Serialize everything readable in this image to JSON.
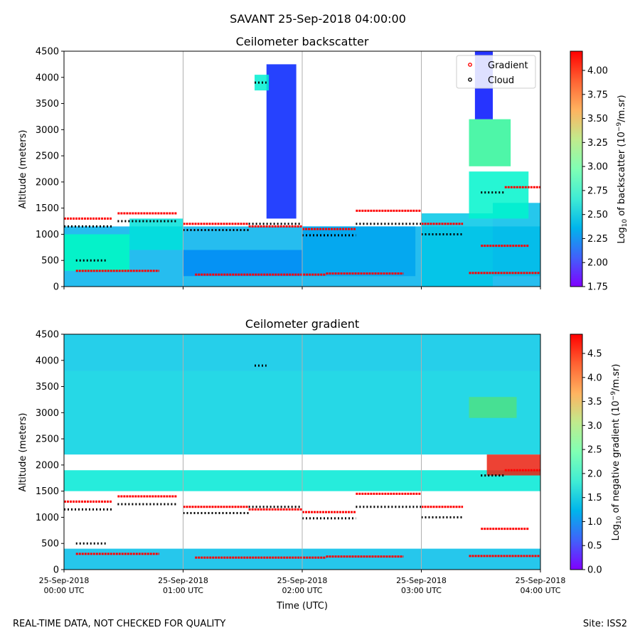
{
  "figure": {
    "suptitle": "SAVANT 25-Sep-2018 04:00:00",
    "footer_left": "REAL-TIME DATA, NOT CHECKED FOR QUALITY",
    "footer_right": "Site: ISS2"
  },
  "chart_data": [
    {
      "type": "heatmap",
      "title": "Ceilometer backscatter",
      "xlabel": "",
      "ylabel": "Altitude (meters)",
      "ylim": [
        0,
        4500
      ],
      "yticks": [
        0,
        500,
        1000,
        1500,
        2000,
        2500,
        3000,
        3500,
        4000,
        4500
      ],
      "xlim_hours": [
        0,
        4
      ],
      "x_grid_hours": [
        1,
        2,
        3
      ],
      "grid": "vertical",
      "legend": {
        "position": "top-right",
        "entries": [
          "Gradient",
          "Cloud"
        ]
      },
      "colorbar": {
        "label_main": "Log",
        "label_sub": "10",
        "label_rest": " of backscatter (10",
        "label_exp": "−9",
        "label_end": "/m.sr)",
        "range": [
          1.75,
          4.2
        ],
        "ticks": [
          "1.75",
          "2.00",
          "2.25",
          "2.50",
          "2.75",
          "3.00",
          "3.25",
          "3.50",
          "3.75",
          "4.00"
        ],
        "tick_values": [
          1.75,
          2.0,
          2.25,
          2.5,
          2.75,
          3.0,
          3.25,
          3.5,
          3.75,
          4.0
        ]
      }
    },
    {
      "type": "heatmap",
      "title": "Ceilometer gradient",
      "xlabel": "Time (UTC)",
      "ylabel": "Altitude (meters)",
      "ylim": [
        0,
        4500
      ],
      "yticks": [
        0,
        500,
        1000,
        1500,
        2000,
        2500,
        3000,
        3500,
        4000,
        4500
      ],
      "xlim_hours": [
        0,
        4
      ],
      "x_grid_hours": [
        1,
        2,
        3
      ],
      "grid": "vertical",
      "xticks": [
        {
          "hour": 0,
          "line1": "25-Sep-2018",
          "line2": "00:00 UTC"
        },
        {
          "hour": 1,
          "line1": "25-Sep-2018",
          "line2": "01:00 UTC"
        },
        {
          "hour": 2,
          "line1": "25-Sep-2018",
          "line2": "02:00 UTC"
        },
        {
          "hour": 3,
          "line1": "25-Sep-2018",
          "line2": "03:00 UTC"
        },
        {
          "hour": 4,
          "line1": "25-Sep-2018",
          "line2": "04:00 UTC"
        }
      ],
      "colorbar": {
        "label_main": "Log",
        "label_sub": "10",
        "label_rest": " of negative gradient (10",
        "label_exp": "−9",
        "label_end": "/m.sr)",
        "range": [
          0.0,
          4.9
        ],
        "ticks": [
          "0.0",
          "0.5",
          "1.0",
          "1.5",
          "2.0",
          "2.5",
          "3.0",
          "3.5",
          "4.0",
          "4.5"
        ],
        "tick_values": [
          0.0,
          0.5,
          1.0,
          1.5,
          2.0,
          2.5,
          3.0,
          3.5,
          4.0,
          4.5
        ]
      }
    }
  ],
  "features": {
    "blobs": [
      {
        "panel": 0,
        "t0": 0.0,
        "t1": 4.0,
        "h0": 0,
        "h1": 1150,
        "v": 2.35
      },
      {
        "panel": 0,
        "t0": 0.0,
        "t1": 0.55,
        "h0": 300,
        "h1": 1000,
        "v": 2.85
      },
      {
        "panel": 0,
        "t0": 0.55,
        "t1": 1.0,
        "h0": 700,
        "h1": 1300,
        "v": 2.6
      },
      {
        "panel": 0,
        "t0": 1.0,
        "t1": 2.0,
        "h0": 200,
        "h1": 700,
        "v": 2.2
      },
      {
        "panel": 0,
        "t0": 2.0,
        "t1": 2.95,
        "h0": 200,
        "h1": 1150,
        "v": 2.3
      },
      {
        "panel": 0,
        "t0": 1.7,
        "t1": 1.95,
        "h0": 1300,
        "h1": 4250,
        "v": 1.85
      },
      {
        "panel": 0,
        "t0": 1.6,
        "t1": 1.72,
        "h0": 3750,
        "h1": 4050,
        "v": 2.7
      },
      {
        "panel": 0,
        "t0": 3.0,
        "t1": 3.6,
        "h0": 0,
        "h1": 1400,
        "v": 2.45
      },
      {
        "panel": 0,
        "t0": 3.4,
        "t1": 3.75,
        "h0": 2300,
        "h1": 3200,
        "v": 3.2
      },
      {
        "panel": 0,
        "t0": 3.45,
        "t1": 3.6,
        "h0": 3200,
        "h1": 4500,
        "v": 1.8
      },
      {
        "panel": 0,
        "t0": 3.6,
        "t1": 4.0,
        "h0": 200,
        "h1": 1600,
        "v": 2.4
      },
      {
        "panel": 0,
        "t0": 3.4,
        "t1": 3.9,
        "h0": 1300,
        "h1": 2200,
        "v": 2.75
      },
      {
        "panel": 1,
        "t0": 0.0,
        "t1": 4.0,
        "h0": 2200,
        "h1": 3800,
        "v": 1.5
      },
      {
        "panel": 1,
        "t0": 0.0,
        "t1": 4.0,
        "h0": 3800,
        "h1": 4500,
        "v": 1.4
      },
      {
        "panel": 1,
        "t0": 0.0,
        "t1": 4.0,
        "h0": 1500,
        "h1": 1900,
        "v": 1.8
      },
      {
        "panel": 1,
        "t0": 0.0,
        "t1": 4.0,
        "h0": 0,
        "h1": 400,
        "v": 1.3
      },
      {
        "panel": 1,
        "t0": 3.4,
        "t1": 3.8,
        "h0": 2900,
        "h1": 3300,
        "v": 3.2
      },
      {
        "panel": 1,
        "t0": 3.55,
        "t1": 4.0,
        "h0": 1800,
        "h1": 2200,
        "v": 4.7
      }
    ],
    "gradient_layers": [
      {
        "t0": 0.0,
        "t1": 0.4,
        "h": 1300
      },
      {
        "t0": 0.45,
        "t1": 0.95,
        "h": 1400
      },
      {
        "t0": 1.0,
        "t1": 1.55,
        "h": 1200
      },
      {
        "t0": 1.55,
        "t1": 2.0,
        "h": 1150
      },
      {
        "t0": 2.0,
        "t1": 2.45,
        "h": 1100
      },
      {
        "t0": 2.45,
        "t1": 3.0,
        "h": 1450
      },
      {
        "t0": 3.0,
        "t1": 3.35,
        "h": 1200
      },
      {
        "t0": 0.1,
        "t1": 0.8,
        "h": 300
      },
      {
        "t0": 1.1,
        "t1": 2.2,
        "h": 230
      },
      {
        "t0": 2.2,
        "t1": 2.85,
        "h": 250
      },
      {
        "t0": 3.4,
        "t1": 4.0,
        "h": 260
      },
      {
        "t0": 3.5,
        "t1": 3.9,
        "h": 780
      },
      {
        "t0": 3.7,
        "t1": 4.0,
        "h": 1900
      }
    ],
    "cloud_layers": [
      {
        "t0": 0.0,
        "t1": 0.4,
        "h": 1150
      },
      {
        "t0": 0.45,
        "t1": 0.95,
        "h": 1250
      },
      {
        "t0": 1.0,
        "t1": 1.55,
        "h": 1080
      },
      {
        "t0": 1.55,
        "t1": 2.0,
        "h": 1200
      },
      {
        "t0": 2.0,
        "t1": 2.45,
        "h": 980
      },
      {
        "t0": 2.45,
        "t1": 3.0,
        "h": 1200
      },
      {
        "t0": 3.0,
        "t1": 3.35,
        "h": 1000
      },
      {
        "t0": 0.1,
        "t1": 0.35,
        "h": 500
      },
      {
        "t0": 1.6,
        "t1": 1.7,
        "h": 3900
      },
      {
        "t0": 3.5,
        "t1": 3.7,
        "h": 1800
      }
    ]
  }
}
